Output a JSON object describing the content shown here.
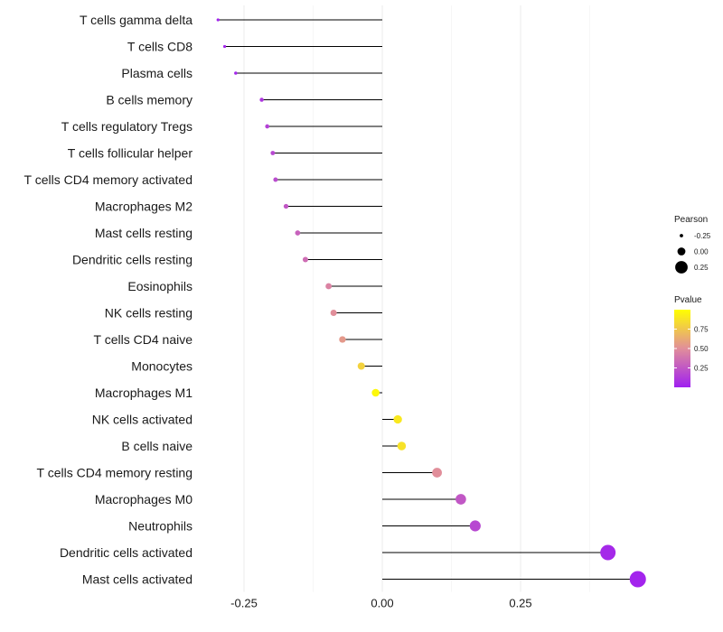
{
  "chart_data": {
    "type": "lollipop",
    "title": "",
    "xlabel": "",
    "ylabel": "",
    "xlim": [
      -0.3,
      0.47
    ],
    "x_ticks": [
      -0.25,
      0.0,
      0.25
    ],
    "x_tick_labels": [
      "-0.25",
      "0.00",
      "0.25"
    ],
    "grid": true,
    "categories": [
      "T cells gamma delta",
      "T cells CD8",
      "Plasma cells",
      "B cells memory",
      "T cells regulatory  Tregs",
      "T cells follicular helper",
      "T cells CD4 memory activated",
      "Macrophages M2",
      "Mast cells resting",
      "Dendritic cells resting",
      "Eosinophils",
      "NK cells resting",
      "T cells CD4 naive",
      "Monocytes",
      "Macrophages M1",
      "NK cells activated",
      "B cells naive",
      "T cells CD4 memory resting",
      "Macrophages M0",
      "Neutrophils",
      "Dendritic cells activated",
      "Mast cells activated"
    ],
    "pearson": [
      -0.297,
      -0.285,
      -0.265,
      -0.218,
      -0.208,
      -0.198,
      -0.193,
      -0.174,
      -0.153,
      -0.139,
      -0.097,
      -0.088,
      -0.072,
      -0.038,
      -0.012,
      0.028,
      0.035,
      0.099,
      0.142,
      0.168,
      0.408,
      0.462
    ],
    "pvalue": [
      0.01,
      0.02,
      0.03,
      0.1,
      0.15,
      0.18,
      0.2,
      0.25,
      0.3,
      0.35,
      0.45,
      0.5,
      0.55,
      0.8,
      0.97,
      0.9,
      0.87,
      0.5,
      0.25,
      0.18,
      0.04,
      0.02
    ],
    "legend": {
      "size_title": "Pearson",
      "size_entries": [
        {
          "label": "-0.25",
          "value": -0.25
        },
        {
          "label": "0.00",
          "value": 0.0
        },
        {
          "label": "0.25",
          "value": 0.25
        }
      ],
      "color_title": "Pvalue",
      "color_ticks": [
        {
          "label": "0.75",
          "value": 0.75
        },
        {
          "label": "0.50",
          "value": 0.5
        },
        {
          "label": "0.25",
          "value": 0.25
        }
      ],
      "color_range": [
        0.0,
        1.0
      ],
      "color_low": "#a020f0",
      "color_mid": "#e18e9a",
      "color_high": "#ffff00",
      "position": "right"
    }
  }
}
